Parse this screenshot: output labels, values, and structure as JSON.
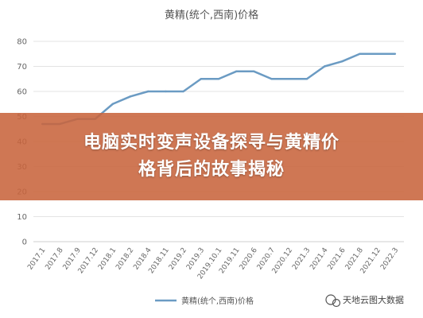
{
  "chart_data": {
    "type": "line",
    "title": "黄精(统个,西南)价格",
    "ylim": [
      0,
      80
    ],
    "yticks": [
      0,
      10,
      20,
      30,
      40,
      50,
      60,
      70,
      80
    ],
    "categories": [
      "2017.1",
      "2017.8",
      "2017.9",
      "2017.12",
      "2018.1",
      "2018.2",
      "2018.4",
      "2018.11",
      "2019.2",
      "2019.3",
      "2019.10.1",
      "2019.11",
      "2020.6",
      "2020.7",
      "2020.12",
      "2021.3",
      "2021.4",
      "2021.6",
      "2021.8",
      "2021.12",
      "2022.3"
    ],
    "series": [
      {
        "name": "黄精(统个,西南)价格",
        "values": [
          47,
          47,
          49,
          49,
          55,
          58,
          60,
          60,
          60,
          65,
          65,
          68,
          68,
          65,
          65,
          65,
          70,
          72,
          75,
          75,
          75
        ]
      }
    ],
    "grid": true,
    "legend": "bottom",
    "colors": {
      "line": "#6b9bc3",
      "grid": "#e3e3e3",
      "banner": "#c8643c"
    }
  },
  "banner": {
    "line1": "电脑实时变声设备探寻与黄精价",
    "line2": "格背后的故事揭秘"
  },
  "watermark": {
    "text": "天地云图大数据"
  }
}
